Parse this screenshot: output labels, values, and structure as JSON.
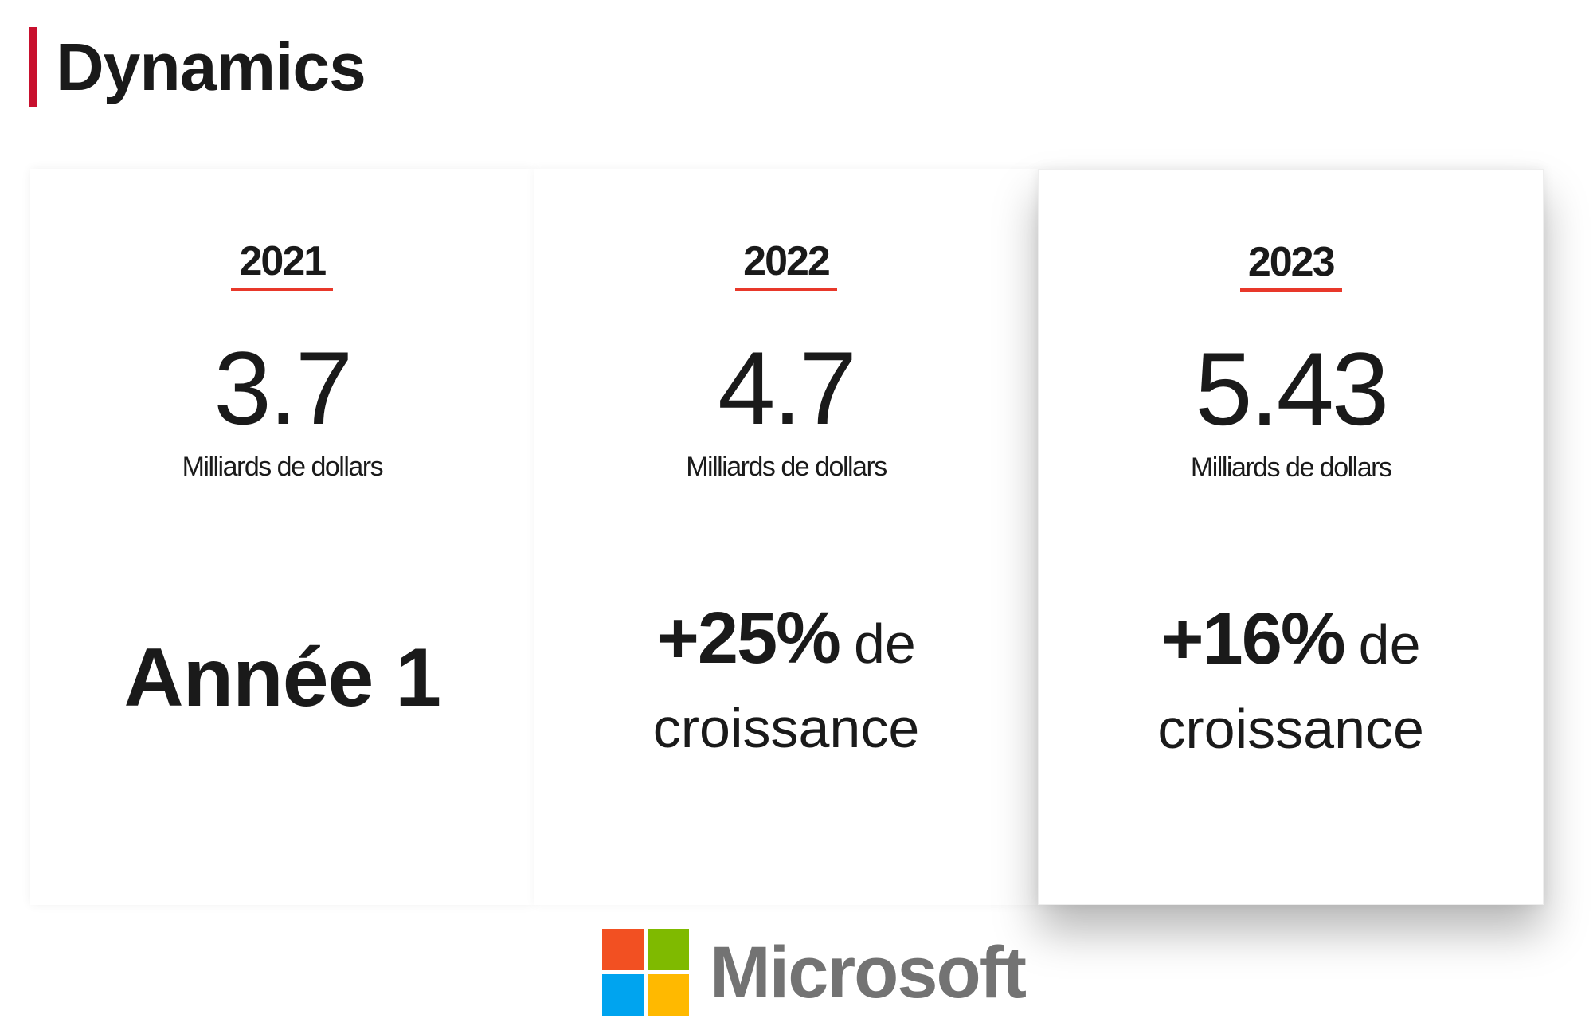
{
  "header": {
    "title": "Dynamics",
    "accent_color": "#c8102e"
  },
  "cards": [
    {
      "year": "2021",
      "value": "3.7",
      "unit": "Milliards de dollars",
      "note": "Année 1"
    },
    {
      "year": "2022",
      "value": "4.7",
      "unit": "Milliards de dollars",
      "growth_pct": "+25%",
      "growth_de": "de",
      "growth_word": "croissance"
    },
    {
      "year": "2023",
      "value": "5.43",
      "unit": "Milliards de dollars",
      "growth_pct": "+16%",
      "growth_de": "de",
      "growth_word": "croissance"
    }
  ],
  "logo": {
    "text": "Microsoft",
    "icon": "microsoft-logo-icon",
    "colors": [
      "#f25022",
      "#7fba00",
      "#00a4ef",
      "#ffb900"
    ]
  },
  "year_underline_color": "#e8382a"
}
